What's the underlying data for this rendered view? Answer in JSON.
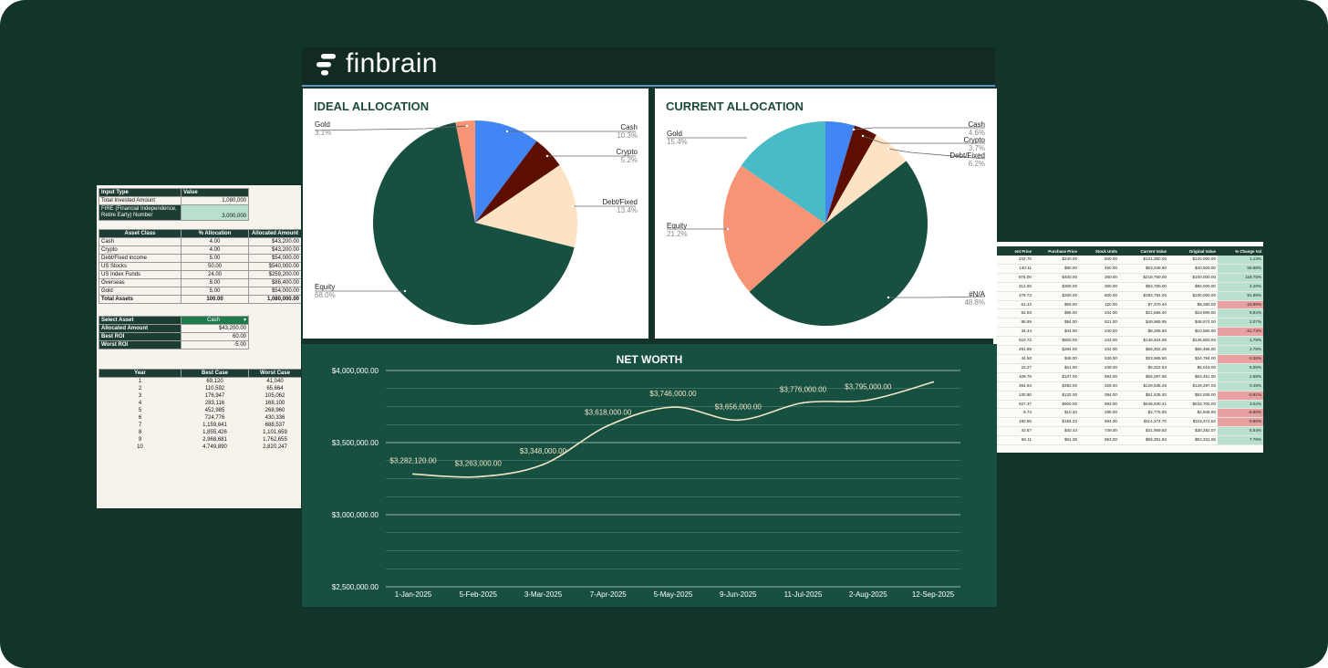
{
  "brand": {
    "name": "finbrain"
  },
  "colors": {
    "background": "#12342a",
    "panel_green": "#174f40",
    "title_green": "#1b4a3c",
    "line": "#f0e6c8",
    "cash": "#4285f4",
    "crypto": "#5c0e00",
    "debt_fixed": "#fde3c3",
    "equity": "#174f40",
    "gold": "#f79476",
    "current_gold": "#48bbc6"
  },
  "ideal_allocation": {
    "title": "IDEAL ALLOCATION",
    "slices": [
      {
        "label": "Cash",
        "pct": "10.3%",
        "value": 10.3
      },
      {
        "label": "Crypto",
        "pct": "5.2%",
        "value": 5.2
      },
      {
        "label": "Debt/Fixed",
        "pct": "13.4%",
        "value": 13.4
      },
      {
        "label": "Equity",
        "pct": "68.0%",
        "value": 68.0
      },
      {
        "label": "Gold",
        "pct": "3.1%",
        "value": 3.1
      }
    ]
  },
  "current_allocation": {
    "title": "CURRENT ALLOCATION",
    "slices": [
      {
        "label": "Cash",
        "pct": "4.6%",
        "value": 4.6
      },
      {
        "label": "Crypto",
        "pct": "3.7%",
        "value": 3.7
      },
      {
        "label": "Debt/Fixed",
        "pct": "6.2%",
        "value": 6.2
      },
      {
        "label": "#N/A",
        "pct": "48.8%",
        "value": 48.8
      },
      {
        "label": "Equity",
        "pct": "21.2%",
        "value": 21.2
      },
      {
        "label": "Gold",
        "pct": "15.4%",
        "value": 15.4
      }
    ]
  },
  "chart_data": {
    "type": "line",
    "title": "NET WORTH",
    "x": [
      "1-Jan-2025",
      "5-Feb-2025",
      "3-Mar-2025",
      "7-Apr-2025",
      "5-May-2025",
      "9-Jun-2025",
      "11-Jul-2025",
      "2-Aug-2025",
      "12-Sep-2025"
    ],
    "series": [
      {
        "values": [
          3282120,
          3263000,
          3348000,
          3618000,
          3746000,
          3656000,
          3776000,
          3795000,
          3920000
        ]
      }
    ],
    "data_labels": [
      "$3,282,120.00",
      "$3,263,000.00",
      "$3,348,000.00",
      "$3,618,000.00",
      "$3,746,000.00",
      "$3,656,000.00",
      "$3,776,000.00",
      "$3,795,000.00"
    ],
    "y_ticks": [
      "$4,000,000.00",
      "$3,500,000.00",
      "$3,000,000.00",
      "$2,500,000.00"
    ],
    "ylim": [
      2500000,
      4000000
    ],
    "grid": true
  },
  "left_sheet": {
    "inputs": {
      "headers": [
        "Input Type",
        "Value"
      ],
      "rows": [
        {
          "label": "Total Invested Amount",
          "value": "1,080,000"
        },
        {
          "label": "FIRE (Financial Independence, Retire Early)  Number",
          "value": "3,000,000"
        }
      ]
    },
    "assets": {
      "headers": [
        "Asset Class",
        "% Allocation",
        "Allocated Amount"
      ],
      "rows": [
        [
          "Cash",
          "4.00",
          "$43,200.00"
        ],
        [
          "Crypto",
          "4.00",
          "$43,200.00"
        ],
        [
          "Debt/Fixed income",
          "5.00",
          "$54,000.00"
        ],
        [
          "US Stocks",
          "50.00",
          "$540,000.00"
        ],
        [
          "US Index Funds",
          "24.00",
          "$259,200.00"
        ],
        [
          "Overseas",
          "8.00",
          "$86,400.00"
        ],
        [
          "Gold",
          "5.00",
          "$54,000.00"
        ],
        [
          "Total Assets",
          "100.00",
          "1,080,000.00"
        ]
      ]
    },
    "select": {
      "rows": [
        {
          "label": "Select Asset",
          "value": "Cash"
        },
        {
          "label": "Allocated Amount",
          "value": "$43,200.00"
        },
        {
          "label": "Best ROI",
          "value": "60.00"
        },
        {
          "label": "Worst ROI",
          "value": "-5.00"
        }
      ]
    },
    "projection": {
      "headers": [
        "Year",
        "Best Case",
        "Worst Case"
      ],
      "rows": [
        [
          "1",
          "69,120",
          "41,040"
        ],
        [
          "2",
          "110,592",
          "65,664"
        ],
        [
          "3",
          "176,947",
          "105,062"
        ],
        [
          "4",
          "283,116",
          "168,100"
        ],
        [
          "5",
          "452,985",
          "268,960"
        ],
        [
          "6",
          "724,776",
          "430,336"
        ],
        [
          "7",
          "1,159,641",
          "688,537"
        ],
        [
          "8",
          "1,855,426",
          "1,101,659"
        ],
        [
          "9",
          "2,968,681",
          "1,762,655"
        ],
        [
          "10",
          "4,749,890",
          "2,820,247"
        ]
      ]
    }
  },
  "right_sheet": {
    "headers": [
      "ent Price",
      "Purchase Price",
      "Stock Units",
      "Current Value",
      "Original Value",
      "% Change Val"
    ],
    "rows": [
      [
        "242.70",
        "$240.00",
        "500.00",
        "$121,350.00",
        "$120,000.00",
        "1.13%"
      ],
      [
        "140.11",
        "$90.00",
        "450.00",
        "$63,049.50",
        "$40,500.00",
        "55.68%"
      ],
      [
        "875.00",
        "$400.00",
        "250.00",
        "$218,750.00",
        "$100,000.00",
        "118.75%"
      ],
      [
        "312.60",
        "$300.00",
        "300.00",
        "$93,780.00",
        "$90,000.00",
        "4.20%"
      ],
      [
        "479.73",
        "$250.00",
        "800.00",
        "$383,784.00",
        "$200,000.00",
        "91.89%"
      ],
      [
        "61.42",
        "$69.00",
        "120.00",
        "$7,370.40",
        "$8,280.00",
        "-10.99%"
      ],
      [
        "92.60",
        "$85.00",
        "234.00",
        "$21,668.40",
        "$19,890.00",
        "8.94%"
      ],
      [
        "95.95",
        "$94.00",
        "521.00",
        "$49,989.95",
        "$48,974.00",
        "2.07%"
      ],
      [
        "34.44",
        "$44.00",
        "240.00",
        "$8,265.60",
        "$10,560.00",
        "-21.73%"
      ],
      [
        "610.72",
        "$600.00",
        "243.00",
        "$148,404.96",
        "$145,800.00",
        "1.79%"
      ],
      [
        "291.89",
        "$284.00",
        "234.00",
        "$68,302.26",
        "$66,456.00",
        "2.78%"
      ],
      [
        "44.50",
        "$46.00",
        "539.00",
        "$23,985.50",
        "$24,794.00",
        "-3.26%"
      ],
      [
        "22.27",
        "$21.00",
        "239.00",
        "$5,322.53",
        "$5,019.00",
        "6.05%"
      ],
      [
        "109.76",
        "$107.00",
        "593.00",
        "$65,087.68",
        "$63,451.00",
        "2.58%"
      ],
      [
        "394.94",
        "$393.00",
        "329.00",
        "$129,935.26",
        "$129,297.00",
        "0.49%"
      ],
      [
        "130.80",
        "$132.00",
        "394.00",
        "$51,535.20",
        "$52,008.00",
        "-0.91%"
      ],
      [
        "927.37",
        "$900.00",
        "593.00",
        "$549,930.41",
        "$533,700.00",
        "3.04%"
      ],
      [
        "9.74",
        "$10.34",
        "285.00",
        "$2,775.90",
        "$2,946.90",
        "-5.80%"
      ],
      [
        "192.55",
        "$194.23",
        "594.00",
        "$114,374.70",
        "$115,372.62",
        "-0.86%"
      ],
      [
        "42.67",
        "$40.43",
        "749.00",
        "$31,959.83",
        "$30,282.07",
        "5.54%"
      ],
      [
        "66.11",
        "$61.35",
        "853.00",
        "$56,391.83",
        "$52,331.55",
        "7.76%"
      ]
    ]
  }
}
